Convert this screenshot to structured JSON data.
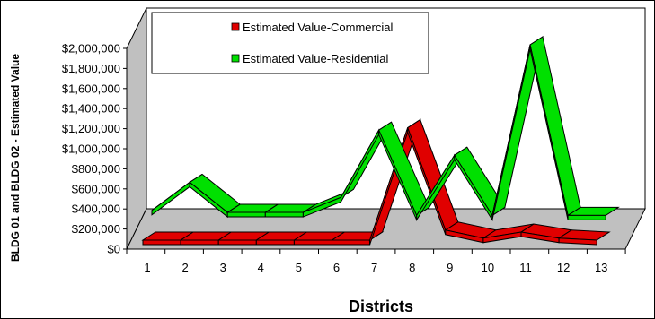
{
  "chart_data": {
    "type": "line",
    "style": "3d-ribbon",
    "xlabel": "Districts",
    "ylabel": "BLDG  01 and BLDG  02 - Estimated Value",
    "categories": [
      "1",
      "2",
      "3",
      "4",
      "5",
      "6",
      "7",
      "8",
      "9",
      "10",
      "11",
      "12",
      "13"
    ],
    "ylim": [
      0,
      2000000
    ],
    "yticks": [
      0,
      200000,
      400000,
      600000,
      800000,
      1000000,
      1200000,
      1400000,
      1600000,
      1800000,
      2000000
    ],
    "ytick_labels": [
      "$0",
      "$200,000",
      "$400,000",
      "$600,000",
      "$800,000",
      "$1,000,000",
      "$1,200,000",
      "$1,400,000",
      "$1,600,000",
      "$1,800,000",
      "$2,000,000"
    ],
    "grid": false,
    "legend_position": "top",
    "series": [
      {
        "name": "Estimated Value-Commercial",
        "color": "#e00000",
        "values": [
          0,
          0,
          0,
          0,
          0,
          0,
          0,
          1120000,
          100000,
          20000,
          80000,
          20000,
          0
        ]
      },
      {
        "name": "Estimated Value-Residential",
        "color": "#00e000",
        "values": [
          100000,
          380000,
          80000,
          80000,
          80000,
          230000,
          900000,
          50000,
          650000,
          50000,
          1750000,
          50000,
          50000
        ]
      }
    ]
  }
}
